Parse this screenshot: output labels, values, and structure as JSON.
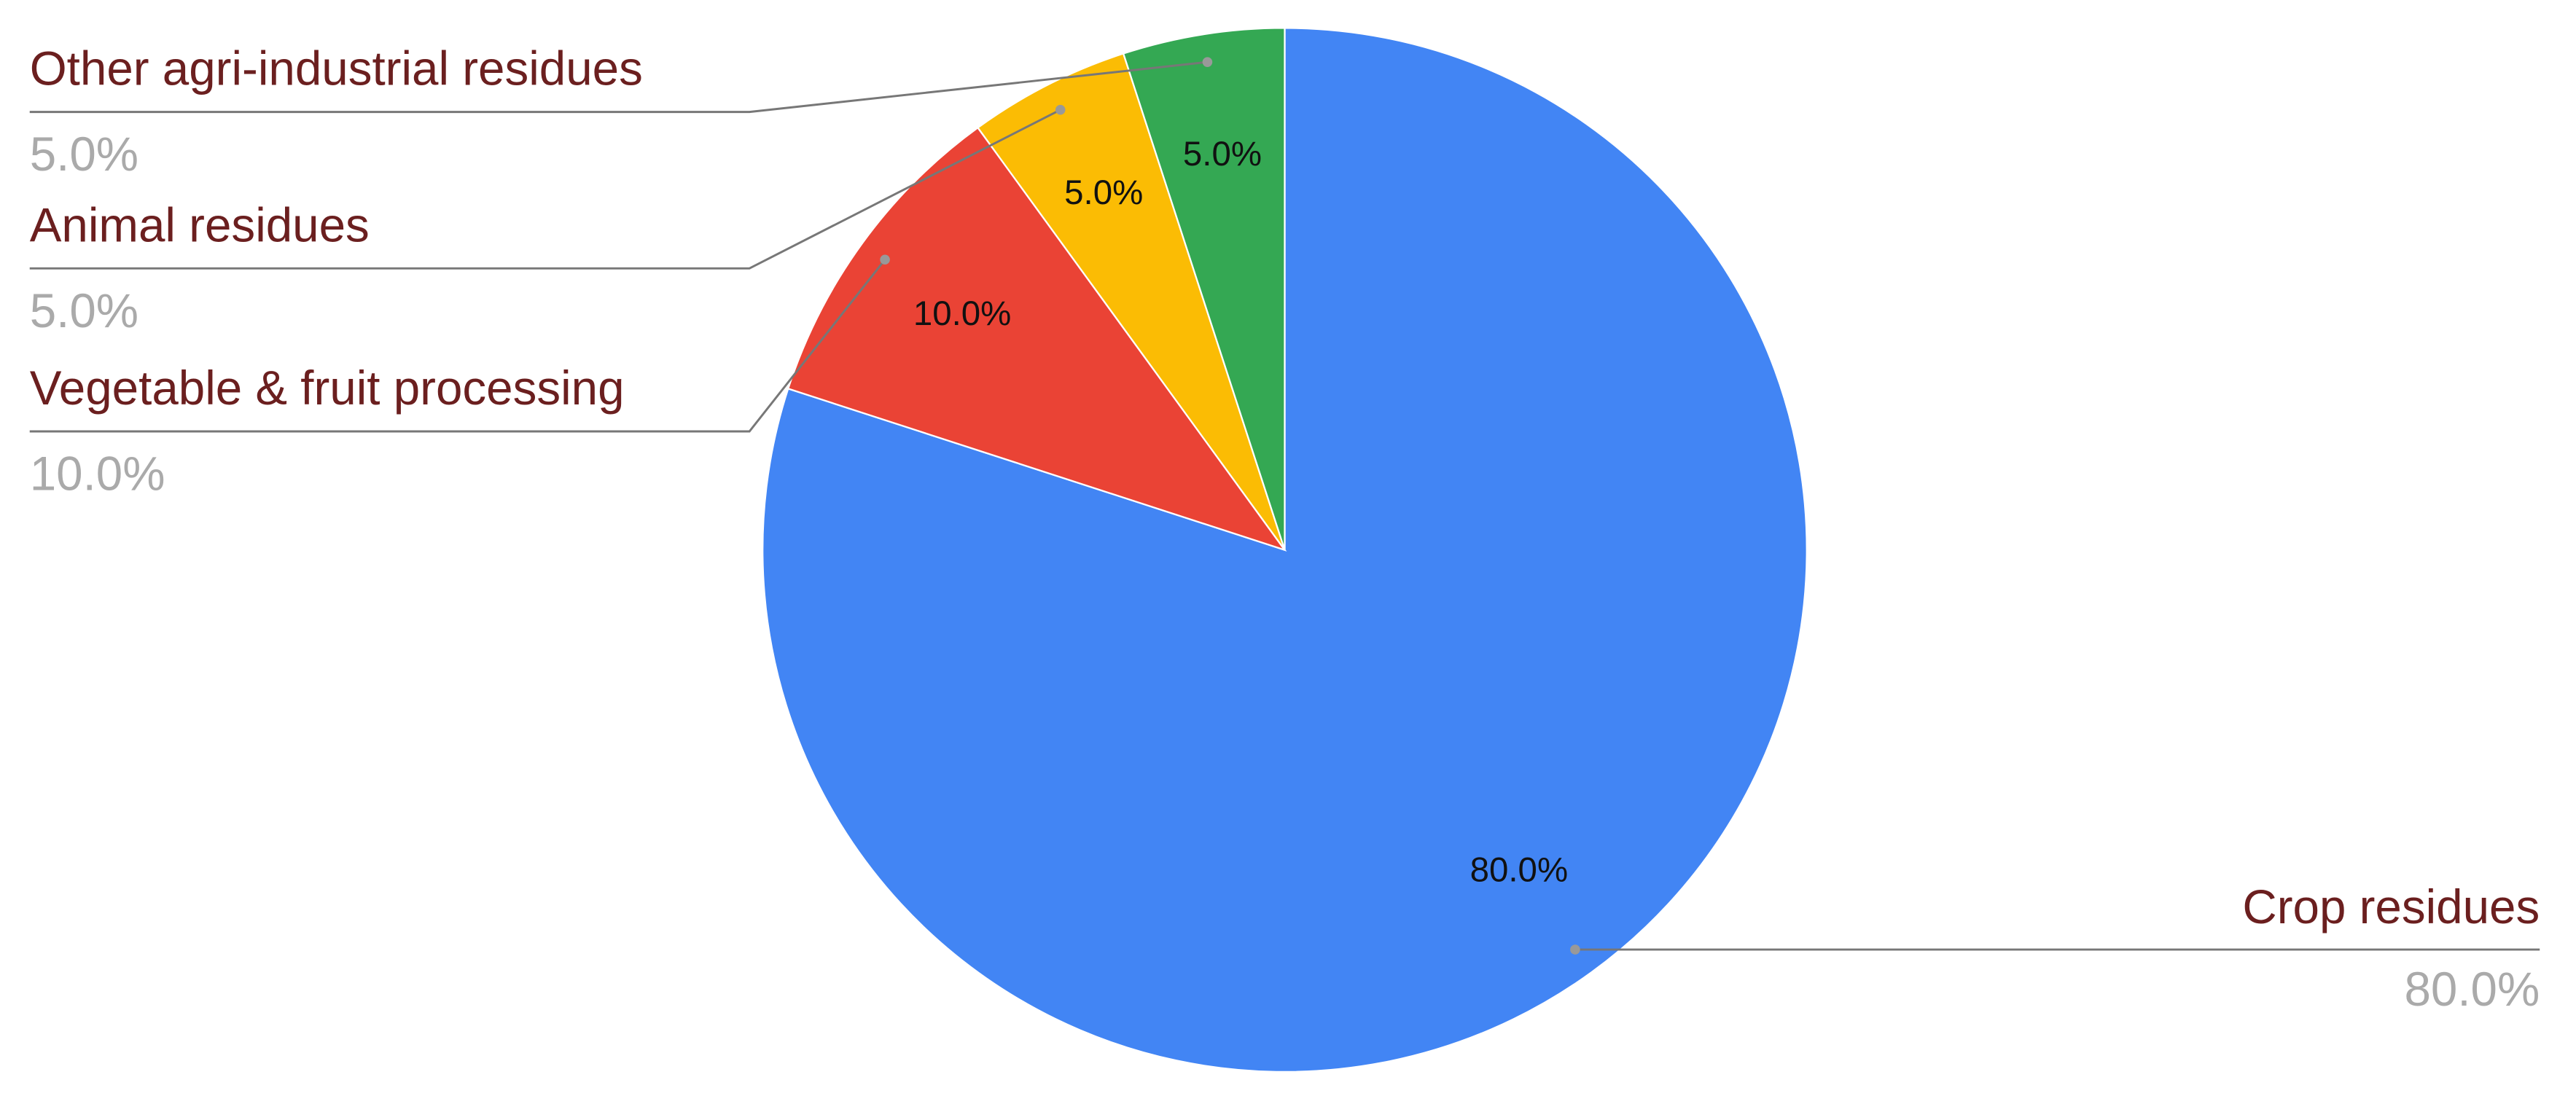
{
  "chart_data": {
    "type": "pie",
    "categories": [
      "Crop residues",
      "Vegetable & fruit processing",
      "Animal residues",
      "Other agri-industrial residues"
    ],
    "values": [
      80,
      10,
      5,
      5
    ],
    "value_labels": [
      "80.0%",
      "10.0%",
      "5.0%",
      "5.0%"
    ],
    "colors": [
      "#4285f4",
      "#ea4335",
      "#fbbc04",
      "#34a853"
    ],
    "legend": "labeled"
  }
}
